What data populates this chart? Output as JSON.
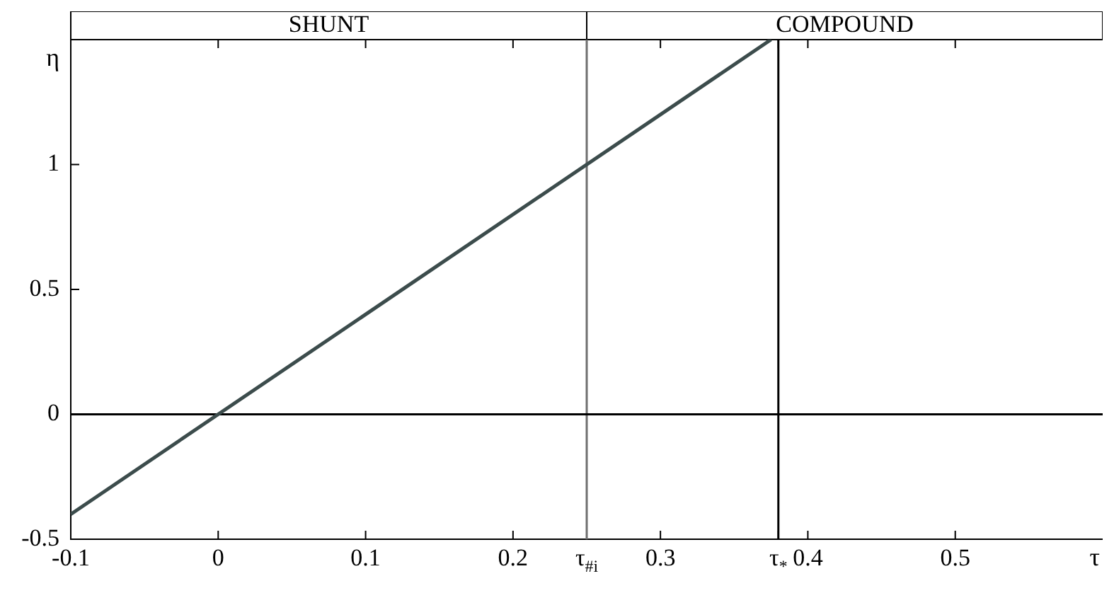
{
  "chart_data": {
    "type": "line",
    "xlabel": "τ",
    "ylabel": "η",
    "series": [
      {
        "color": "#3c4c4c",
        "x": [
          -0.1,
          0.375
        ],
        "values": [
          -0.4,
          1.5
        ]
      }
    ],
    "xlim": [
      -0.1,
      0.6
    ],
    "ylim": [
      -0.5,
      1.5
    ],
    "xticks": [
      -0.1,
      0,
      0.1,
      0.2,
      {
        "value": 0.25,
        "label": "τ$_{#i}$"
      },
      0.3,
      {
        "value": 0.38,
        "label": "τ$_{*}$"
      },
      0.4,
      0.5
    ],
    "yticks": [
      -0.5,
      0,
      0.5,
      1
    ],
    "ref_lines": [
      {
        "axis": "x",
        "value": 0.25,
        "color": "#707070"
      },
      {
        "axis": "x",
        "value": 0.38,
        "color": "#000000"
      },
      {
        "axis": "y",
        "value": 0,
        "color": "#000000"
      }
    ],
    "annotations": [
      "SHUNT",
      "COMPOUND"
    ],
    "grid": false,
    "legend": false,
    "marker": "none",
    "line_style": "solid"
  }
}
